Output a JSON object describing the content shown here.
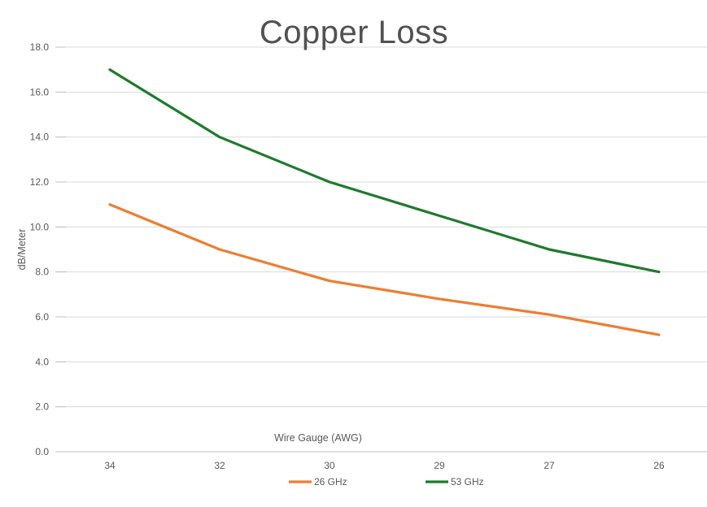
{
  "title": "Copper Loss",
  "colors": {
    "title_text": "#515151",
    "axis_text": "#595959",
    "gridline": "#D9D9D9",
    "axis_line": "#BFBFBF",
    "series_26ghz": "#ED7D31",
    "series_53ghz": "#1F7A2D",
    "background": "#FFFFFF"
  },
  "chart_data": {
    "type": "line",
    "title": "Copper Loss",
    "xlabel": "Wire Gauge (AWG)",
    "ylabel": "dB/Meter",
    "categories": [
      "34",
      "32",
      "30",
      "29",
      "27",
      "26"
    ],
    "series": [
      {
        "name": "26 GHz",
        "color": "#ED7D31",
        "values": [
          11.0,
          9.0,
          7.6,
          6.8,
          6.1,
          5.2
        ]
      },
      {
        "name": "53 GHz",
        "color": "#1F7A2D",
        "values": [
          17.0,
          14.0,
          12.0,
          10.5,
          9.0,
          8.0
        ]
      }
    ],
    "ylim": [
      0,
      18
    ],
    "ytick_step": 2,
    "ytick_labels": [
      "0.0",
      "2.0",
      "4.0",
      "6.0",
      "8.0",
      "10.0",
      "12.0",
      "14.0",
      "16.0",
      "18.0"
    ],
    "grid": "horizontal",
    "legend_position": "bottom"
  }
}
